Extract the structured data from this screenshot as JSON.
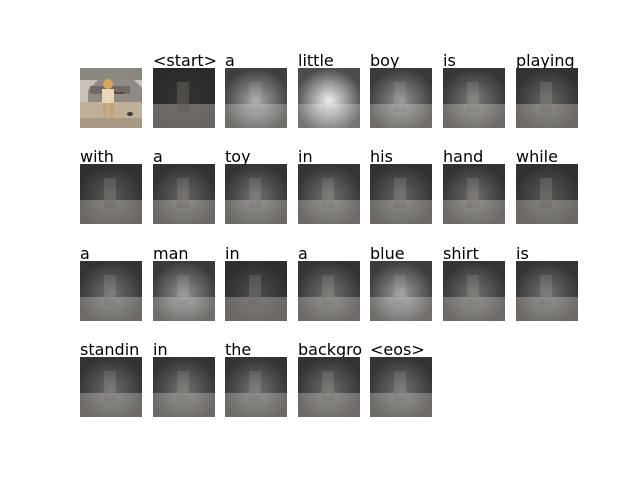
{
  "figure": {
    "source_photo": {
      "description_icon": "photo-icon",
      "colors": {
        "sky": "#c9c2b8",
        "car": "#8f8a86",
        "ground": "#bfb09a",
        "shirt": "#e9d7b8"
      }
    },
    "tokens": [
      "<start>",
      "a",
      "little",
      "boy",
      "is",
      "playing",
      "with",
      "a",
      "toy",
      "in",
      "his",
      "hand",
      "while",
      "a",
      "man",
      "in",
      "a",
      "blue",
      "shirt",
      "is",
      "standin",
      "in",
      "the",
      "backgro",
      "<eos>"
    ],
    "attention_levels": [
      0.05,
      0.55,
      0.9,
      0.45,
      0.35,
      0.25,
      0.2,
      0.25,
      0.3,
      0.3,
      0.25,
      0.28,
      0.2,
      0.3,
      0.45,
      0.15,
      0.3,
      0.5,
      0.3,
      0.3,
      0.28,
      0.3,
      0.3,
      0.28,
      0.3
    ]
  }
}
